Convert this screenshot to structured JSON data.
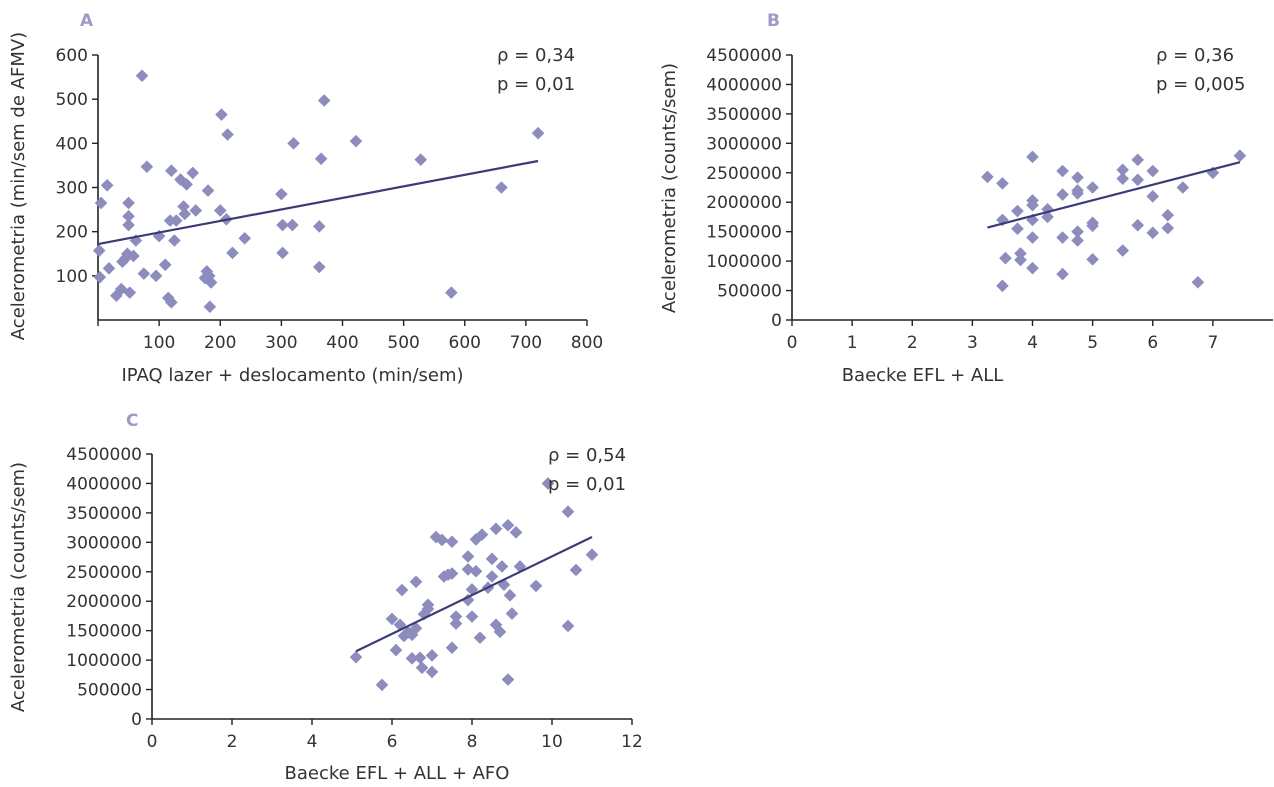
{
  "chart_data": [
    {
      "panel": "A",
      "type": "scatter",
      "xlabel": "IPAQ lazer + deslocamento (min/sem)",
      "ylabel": "Acelerometria (min/sem de AFMV)",
      "xlim": [
        0,
        800
      ],
      "ylim": [
        0,
        600
      ],
      "xticks": [
        "100",
        "200",
        "300",
        "400",
        "500",
        "600",
        "700",
        "800"
      ],
      "yticks": [
        "100",
        "200",
        "300",
        "400",
        "500",
        "600"
      ],
      "annotations": [
        "ρ = 0,34",
        "p = 0,01"
      ],
      "marker_color": "#8c8cbd",
      "line_color": "#3d3a78",
      "trend": {
        "x": [
          0,
          720
        ],
        "y": [
          172,
          360
        ]
      },
      "points": [
        [
          5,
          265
        ],
        [
          2,
          157
        ],
        [
          3,
          97
        ],
        [
          15,
          305
        ],
        [
          18,
          117
        ],
        [
          30,
          55
        ],
        [
          38,
          70
        ],
        [
          40,
          132
        ],
        [
          45,
          140
        ],
        [
          48,
          150
        ],
        [
          50,
          265
        ],
        [
          50,
          235
        ],
        [
          50,
          215
        ],
        [
          52,
          62
        ],
        [
          58,
          145
        ],
        [
          62,
          180
        ],
        [
          72,
          553
        ],
        [
          75,
          105
        ],
        [
          80,
          347
        ],
        [
          95,
          100
        ],
        [
          100,
          190
        ],
        [
          110,
          125
        ],
        [
          115,
          50
        ],
        [
          118,
          225
        ],
        [
          120,
          338
        ],
        [
          120,
          40
        ],
        [
          125,
          180
        ],
        [
          128,
          225
        ],
        [
          135,
          318
        ],
        [
          140,
          257
        ],
        [
          142,
          240
        ],
        [
          145,
          307
        ],
        [
          155,
          333
        ],
        [
          160,
          248
        ],
        [
          175,
          95
        ],
        [
          178,
          110
        ],
        [
          180,
          293
        ],
        [
          182,
          100
        ],
        [
          183,
          30
        ],
        [
          185,
          85
        ],
        [
          200,
          248
        ],
        [
          202,
          465
        ],
        [
          210,
          228
        ],
        [
          212,
          420
        ],
        [
          220,
          152
        ],
        [
          240,
          185
        ],
        [
          300,
          285
        ],
        [
          302,
          215
        ],
        [
          302,
          152
        ],
        [
          318,
          215
        ],
        [
          320,
          400
        ],
        [
          362,
          212
        ],
        [
          362,
          120
        ],
        [
          365,
          365
        ],
        [
          370,
          497
        ],
        [
          422,
          405
        ],
        [
          528,
          363
        ],
        [
          578,
          62
        ],
        [
          660,
          300
        ],
        [
          720,
          423
        ]
      ]
    },
    {
      "panel": "B",
      "type": "scatter",
      "xlabel": "Baecke EFL + ALL",
      "ylabel": "Acelerometria (counts/sem)",
      "xlim": [
        0,
        8
      ],
      "ylim": [
        0,
        4500000
      ],
      "xticks": [
        "0",
        "1",
        "2",
        "3",
        "4",
        "5",
        "6",
        "7"
      ],
      "yticks": [
        "0",
        "500000",
        "1000000",
        "1500000",
        "2000000",
        "2500000",
        "3000000",
        "3500000",
        "4000000",
        "4500000"
      ],
      "annotations": [
        "ρ = 0,36",
        "p = 0,005"
      ],
      "marker_color": "#8c8cbd",
      "line_color": "#3d3a78",
      "trend": {
        "x": [
          3.25,
          7.45
        ],
        "y": [
          1570000,
          2680000
        ]
      },
      "points": [
        [
          3.25,
          2430000
        ],
        [
          3.5,
          2320000
        ],
        [
          3.5,
          1700000
        ],
        [
          3.5,
          580000
        ],
        [
          3.55,
          1050000
        ],
        [
          3.75,
          1850000
        ],
        [
          3.75,
          1550000
        ],
        [
          3.8,
          1130000
        ],
        [
          3.8,
          1020000
        ],
        [
          4.0,
          2770000
        ],
        [
          4.0,
          2030000
        ],
        [
          4.0,
          1950000
        ],
        [
          4.0,
          1700000
        ],
        [
          4.0,
          1400000
        ],
        [
          4.0,
          880000
        ],
        [
          4.25,
          1750000
        ],
        [
          4.25,
          1880000
        ],
        [
          4.5,
          2530000
        ],
        [
          4.5,
          2130000
        ],
        [
          4.5,
          1400000
        ],
        [
          4.5,
          780000
        ],
        [
          4.75,
          2420000
        ],
        [
          4.75,
          2200000
        ],
        [
          4.75,
          2150000
        ],
        [
          4.75,
          1500000
        ],
        [
          4.75,
          1350000
        ],
        [
          5.0,
          2250000
        ],
        [
          5.0,
          1650000
        ],
        [
          5.0,
          1600000
        ],
        [
          5.0,
          1030000
        ],
        [
          5.5,
          2550000
        ],
        [
          5.5,
          2400000
        ],
        [
          5.5,
          1180000
        ],
        [
          5.75,
          2720000
        ],
        [
          5.75,
          2380000
        ],
        [
          5.75,
          1610000
        ],
        [
          6.0,
          2530000
        ],
        [
          6.0,
          2100000
        ],
        [
          6.0,
          1480000
        ],
        [
          6.25,
          1780000
        ],
        [
          6.25,
          1560000
        ],
        [
          6.5,
          2250000
        ],
        [
          6.75,
          640000
        ],
        [
          7.0,
          2500000
        ],
        [
          7.45,
          2790000
        ]
      ]
    },
    {
      "panel": "C",
      "type": "scatter",
      "xlabel": "Baecke EFL + ALL + AFO",
      "ylabel": "Acelerometria (counts/sem)",
      "xlim": [
        0,
        12
      ],
      "ylim": [
        0,
        4500000
      ],
      "xticks": [
        "0",
        "2",
        "4",
        "6",
        "8",
        "10",
        "12"
      ],
      "yticks": [
        "0",
        "500000",
        "1000000",
        "1500000",
        "2000000",
        "2500000",
        "3000000",
        "3500000",
        "4000000",
        "4500000"
      ],
      "annotations": [
        "ρ = 0,54",
        "p = 0,01"
      ],
      "marker_color": "#8c8cbd",
      "line_color": "#3d3a78",
      "trend": {
        "x": [
          5.1,
          11.0
        ],
        "y": [
          1150000,
          3090000
        ]
      },
      "points": [
        [
          5.1,
          1050000
        ],
        [
          5.75,
          580000
        ],
        [
          6.0,
          1700000
        ],
        [
          6.1,
          1170000
        ],
        [
          6.2,
          1600000
        ],
        [
          6.25,
          2190000
        ],
        [
          6.3,
          1410000
        ],
        [
          6.4,
          1470000
        ],
        [
          6.5,
          1030000
        ],
        [
          6.5,
          1430000
        ],
        [
          6.6,
          2330000
        ],
        [
          6.6,
          1540000
        ],
        [
          6.7,
          1040000
        ],
        [
          6.75,
          870000
        ],
        [
          6.8,
          1780000
        ],
        [
          6.9,
          1870000
        ],
        [
          6.9,
          1940000
        ],
        [
          7.0,
          800000
        ],
        [
          7.0,
          1080000
        ],
        [
          7.1,
          3090000
        ],
        [
          7.25,
          3040000
        ],
        [
          7.3,
          2420000
        ],
        [
          7.4,
          2450000
        ],
        [
          7.5,
          3010000
        ],
        [
          7.5,
          2470000
        ],
        [
          7.5,
          1210000
        ],
        [
          7.6,
          1620000
        ],
        [
          7.6,
          1740000
        ],
        [
          7.9,
          2540000
        ],
        [
          7.9,
          2020000
        ],
        [
          7.9,
          2760000
        ],
        [
          8.0,
          1740000
        ],
        [
          8.0,
          2200000
        ],
        [
          8.1,
          3050000
        ],
        [
          8.1,
          2510000
        ],
        [
          8.2,
          1380000
        ],
        [
          8.25,
          3130000
        ],
        [
          8.4,
          2230000
        ],
        [
          8.5,
          2720000
        ],
        [
          8.5,
          2420000
        ],
        [
          8.6,
          3230000
        ],
        [
          8.6,
          1600000
        ],
        [
          8.7,
          1480000
        ],
        [
          8.75,
          2590000
        ],
        [
          8.8,
          2280000
        ],
        [
          8.9,
          3290000
        ],
        [
          8.9,
          670000
        ],
        [
          8.95,
          2100000
        ],
        [
          9.0,
          1790000
        ],
        [
          9.1,
          3170000
        ],
        [
          9.2,
          2590000
        ],
        [
          9.6,
          2260000
        ],
        [
          9.9,
          4000000
        ],
        [
          10.4,
          3520000
        ],
        [
          10.4,
          1580000
        ],
        [
          10.6,
          2530000
        ],
        [
          11.0,
          2790000
        ]
      ]
    }
  ]
}
